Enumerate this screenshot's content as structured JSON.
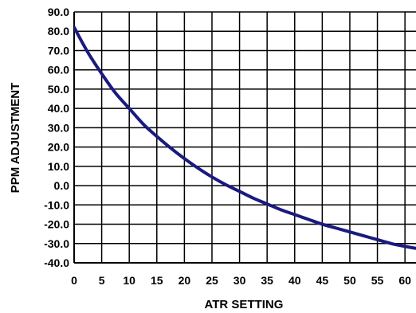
{
  "chart_data": {
    "type": "line",
    "title": "",
    "xlabel": "ATR SETTING",
    "ylabel": "PPM ADJUSTMENT",
    "xlim": [
      0,
      62
    ],
    "ylim": [
      -40,
      90
    ],
    "x_ticks": [
      0,
      5,
      10,
      15,
      20,
      25,
      30,
      35,
      40,
      45,
      50,
      55,
      60
    ],
    "y_ticks": [
      90.0,
      80.0,
      70.0,
      60.0,
      50.0,
      40.0,
      30.0,
      20.0,
      10.0,
      0.0,
      -10.0,
      -20.0,
      -30.0,
      -40.0
    ],
    "x_tick_labels": [
      "0",
      "5",
      "10",
      "15",
      "20",
      "25",
      "30",
      "35",
      "40",
      "45",
      "50",
      "55",
      "60"
    ],
    "y_tick_labels": [
      "90.0",
      "80.0",
      "70.0",
      "60.0",
      "50.0",
      "40.0",
      "30.0",
      "20.0",
      "10.0",
      "0.0",
      "-10.0",
      "-20.0",
      "-30.0",
      "-40.0"
    ],
    "grid": true,
    "series": [
      {
        "x": [
          0,
          2.5,
          5,
          7.5,
          10,
          12.5,
          15,
          17.5,
          20,
          22.5,
          25,
          27.5,
          30,
          32.5,
          35,
          37.5,
          40,
          42.5,
          45,
          47.5,
          50,
          52.5,
          55,
          57.5,
          60,
          62
        ],
        "y": [
          82,
          69,
          58,
          48,
          40,
          32,
          25.5,
          19.5,
          14,
          9,
          4.5,
          0.5,
          -3,
          -6.5,
          -9.5,
          -12.5,
          -15,
          -17.5,
          -20,
          -22,
          -24,
          -26,
          -28,
          -30,
          -31.5,
          -32.5
        ]
      }
    ],
    "colors": {
      "line": "#1a1a80",
      "grid": "#000000",
      "text": "#000000"
    }
  }
}
